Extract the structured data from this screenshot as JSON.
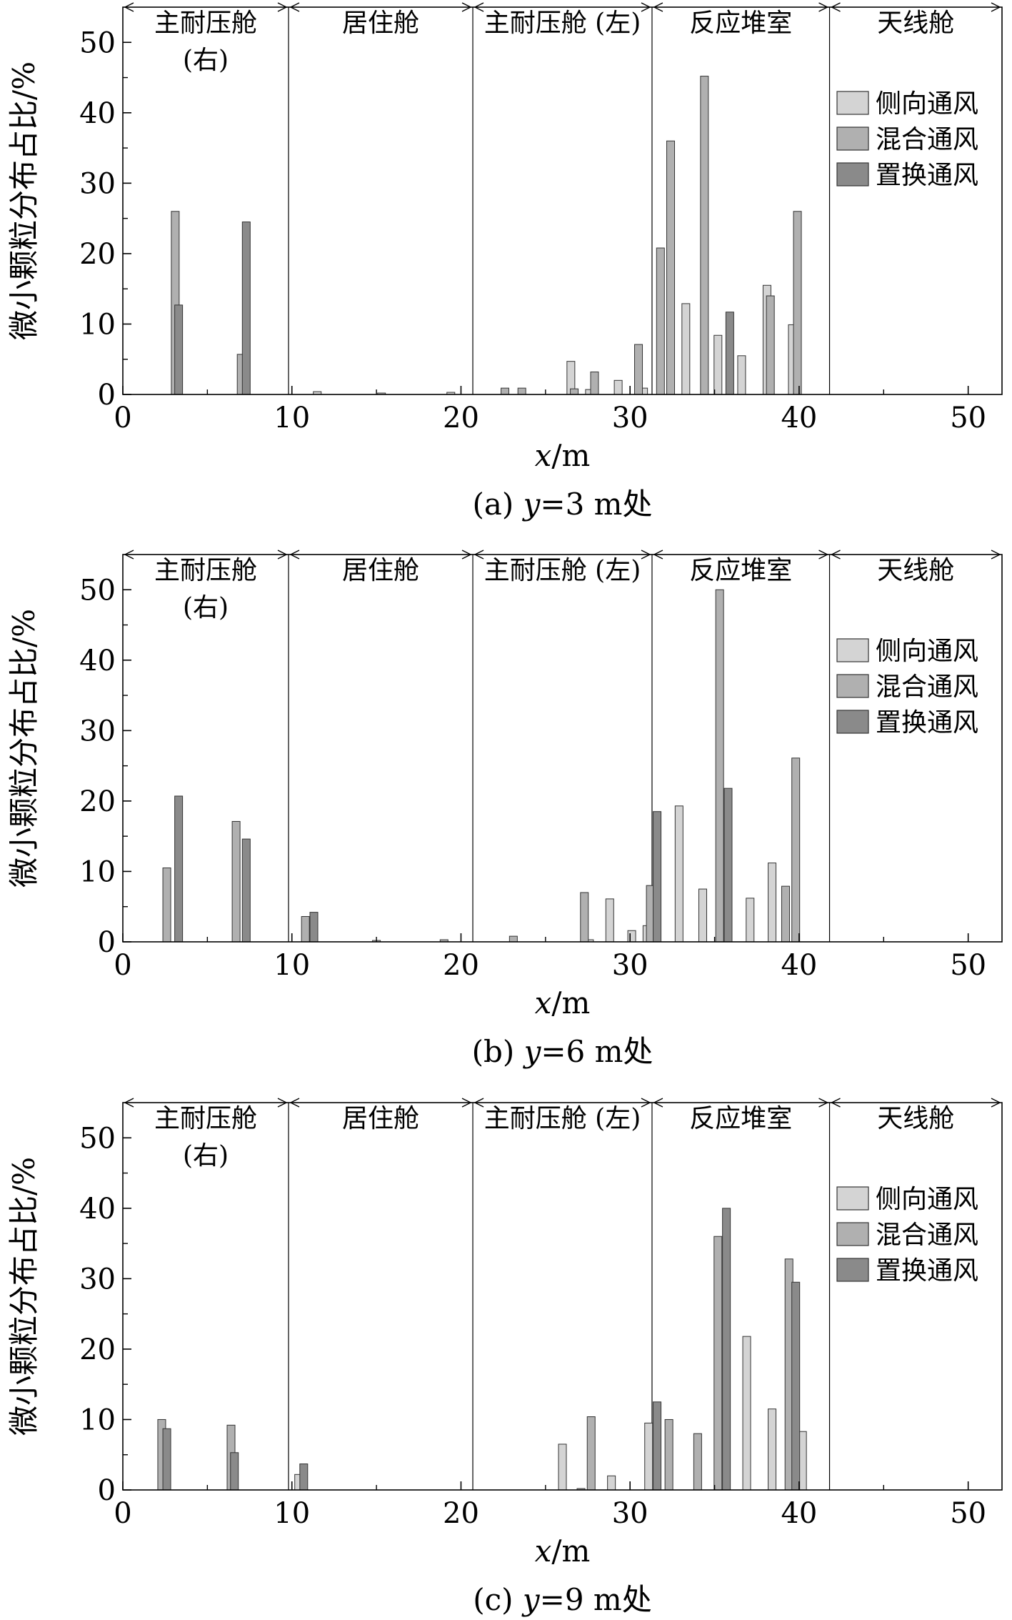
{
  "figure": {
    "ylabel": "微小颗粒分布占比/%",
    "legend": [
      "侧向通风",
      "混合通风",
      "置换通风"
    ],
    "legend_placement": "right",
    "colors": {
      "lateral": "#d4d4d4",
      "mixed": "#b0b0b0",
      "displacement": "#8a8a8a",
      "axis": "#000000"
    },
    "regions": [
      {
        "label": "主耐压舱",
        "label2": "(右)",
        "x0": 0,
        "x1": 9.8
      },
      {
        "label": "居住舱",
        "label2": "",
        "x0": 9.8,
        "x1": 20.7
      },
      {
        "label": "主耐压舱 (左)",
        "label2": "",
        "x0": 20.7,
        "x1": 31.3
      },
      {
        "label": "反应堆室",
        "label2": "",
        "x0": 31.3,
        "x1": 41.8
      },
      {
        "label": "天线舱",
        "label2": "",
        "x0": 41.8,
        "x1": 52
      }
    ]
  },
  "chart_data": [
    {
      "type": "bar",
      "caption": "(a) y=3 m处",
      "caption_parts": [
        "(a) ",
        "y",
        "=3 m处"
      ],
      "xlabel": "x/m",
      "xlabel_parts": [
        "x",
        "/m"
      ],
      "ylabel": "微小颗粒分布占比/%",
      "xlim": [
        0,
        52
      ],
      "ylim": [
        0,
        55
      ],
      "xticks": [
        0,
        10,
        20,
        30,
        40,
        50
      ],
      "yticks": [
        0,
        10,
        20,
        30,
        40,
        50
      ],
      "series": [
        {
          "name": "侧向通风",
          "points": [
            [
              11.5,
              0.4
            ],
            [
              15.3,
              0.2
            ],
            [
              19.4,
              0.3
            ],
            [
              26.5,
              4.7
            ],
            [
              27.6,
              0.7
            ],
            [
              29.3,
              2.0
            ],
            [
              30.8,
              0.9
            ],
            [
              33.3,
              12.9
            ],
            [
              35.2,
              8.4
            ],
            [
              36.6,
              5.5
            ],
            [
              38.1,
              15.5
            ],
            [
              39.6,
              9.9
            ]
          ]
        },
        {
          "name": "混合通风",
          "points": [
            [
              3.1,
              26.0
            ],
            [
              7.0,
              5.7
            ],
            [
              22.6,
              0.9
            ],
            [
              23.6,
              0.9
            ],
            [
              26.7,
              0.8
            ],
            [
              27.9,
              3.2
            ],
            [
              30.5,
              7.1
            ],
            [
              31.8,
              20.8
            ],
            [
              32.4,
              36.0
            ],
            [
              34.4,
              45.2
            ],
            [
              38.3,
              14.0
            ],
            [
              39.9,
              26.0
            ]
          ]
        },
        {
          "name": "置换通风",
          "points": [
            [
              3.3,
              12.7
            ],
            [
              7.3,
              24.5
            ],
            [
              35.9,
              11.7
            ]
          ]
        }
      ]
    },
    {
      "type": "bar",
      "caption": "(b) y=6 m处",
      "caption_parts": [
        "(b) ",
        "y",
        "=6 m处"
      ],
      "xlabel": "x/m",
      "xlabel_parts": [
        "x",
        "/m"
      ],
      "ylabel": "微小颗粒分布占比/%",
      "xlim": [
        0,
        52
      ],
      "ylim": [
        0,
        55
      ],
      "xticks": [
        0,
        10,
        20,
        30,
        40,
        50
      ],
      "yticks": [
        0,
        10,
        20,
        30,
        40,
        50
      ],
      "series": [
        {
          "name": "侧向通风",
          "points": [
            [
              15.0,
              0.2
            ],
            [
              27.6,
              0.3
            ],
            [
              28.8,
              6.1
            ],
            [
              30.1,
              1.6
            ],
            [
              31.0,
              2.3
            ],
            [
              32.9,
              19.3
            ],
            [
              34.3,
              7.5
            ],
            [
              37.1,
              6.2
            ],
            [
              38.4,
              11.2
            ]
          ]
        },
        {
          "name": "混合通风",
          "points": [
            [
              2.6,
              10.5
            ],
            [
              6.7,
              17.1
            ],
            [
              10.8,
              3.6
            ],
            [
              19.0,
              0.3
            ],
            [
              23.1,
              0.8
            ],
            [
              27.3,
              7.0
            ],
            [
              31.2,
              8.0
            ],
            [
              35.3,
              50.0
            ],
            [
              39.2,
              7.9
            ],
            [
              39.8,
              26.1
            ]
          ]
        },
        {
          "name": "置换通风",
          "points": [
            [
              3.3,
              20.7
            ],
            [
              7.3,
              14.6
            ],
            [
              11.3,
              4.2
            ],
            [
              31.6,
              18.5
            ],
            [
              35.8,
              21.8
            ]
          ]
        }
      ]
    },
    {
      "type": "bar",
      "caption": "(c) y=9 m处",
      "caption_parts": [
        "(c) ",
        "y",
        "=9 m处"
      ],
      "xlabel": "x/m",
      "xlabel_parts": [
        "x",
        "/m"
      ],
      "ylabel": "微小颗粒分布占比/%",
      "xlim": [
        0,
        52
      ],
      "ylim": [
        0,
        55
      ],
      "xticks": [
        0,
        10,
        20,
        30,
        40,
        50
      ],
      "yticks": [
        0,
        10,
        20,
        30,
        40,
        50
      ],
      "series": [
        {
          "name": "侧向通风",
          "points": [
            [
              10.4,
              2.2
            ],
            [
              26.0,
              6.5
            ],
            [
              28.9,
              2.0
            ],
            [
              31.1,
              9.5
            ],
            [
              36.9,
              21.8
            ],
            [
              38.4,
              11.5
            ],
            [
              40.2,
              8.3
            ]
          ]
        },
        {
          "name": "混合通风",
          "points": [
            [
              2.3,
              10.0
            ],
            [
              6.4,
              9.2
            ],
            [
              27.1,
              0.2
            ],
            [
              27.7,
              10.4
            ],
            [
              32.3,
              10.0
            ],
            [
              34.0,
              8.0
            ],
            [
              35.2,
              36.0
            ],
            [
              39.4,
              32.8
            ]
          ]
        },
        {
          "name": "置换通风",
          "points": [
            [
              2.6,
              8.7
            ],
            [
              6.6,
              5.3
            ],
            [
              10.7,
              3.7
            ],
            [
              31.6,
              12.5
            ],
            [
              35.7,
              40.0
            ],
            [
              39.8,
              29.5
            ]
          ]
        }
      ]
    }
  ]
}
